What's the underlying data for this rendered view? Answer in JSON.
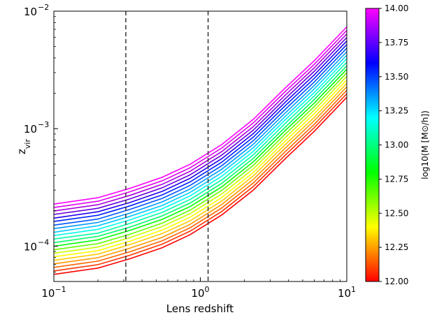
{
  "chart_data": {
    "type": "line",
    "title": "",
    "xlabel": "Lens redshift",
    "ylabel": "z_vir",
    "xscale": "log",
    "yscale": "log",
    "xlim": [
      0.1,
      10
    ],
    "ylim": [
      5e-05,
      0.01
    ],
    "grid": false,
    "x": [
      0.1,
      0.2,
      0.33,
      0.55,
      0.85,
      1.4,
      2.3,
      3.8,
      6.0,
      10.0
    ],
    "x_ticks": [
      {
        "value": 0.1,
        "base": "10",
        "exp": "−1"
      },
      {
        "value": 1,
        "base": "10",
        "exp": "0"
      },
      {
        "value": 10,
        "base": "10",
        "exp": "1"
      }
    ],
    "y_ticks": [
      {
        "value": 0.0001,
        "base": "10",
        "exp": "−4"
      },
      {
        "value": 0.001,
        "base": "10",
        "exp": "−3"
      },
      {
        "value": 0.01,
        "base": "10",
        "exp": "−2"
      }
    ],
    "vlines": [
      {
        "x": 0.31,
        "style": "dashed",
        "color": "#333333"
      },
      {
        "x": 1.13,
        "style": "dashed",
        "color": "#333333"
      }
    ],
    "series": [
      {
        "mass": 12.0,
        "color": "#ff0000",
        "values": [
          5.75e-05,
          6.5e-05,
          7.8e-05,
          9.7e-05,
          0.000125,
          0.000184,
          0.0003,
          0.000555,
          0.00095,
          0.00185
        ]
      },
      {
        "mass": 12.1,
        "color": "#ff3300",
        "values": [
          6.15e-05,
          6.95e-05,
          8.35e-05,
          0.000104,
          0.000134,
          0.000197,
          0.000322,
          0.000595,
          0.00102,
          0.00198
        ]
      },
      {
        "mass": 12.2,
        "color": "#ff6600",
        "values": [
          6.59e-05,
          7.45e-05,
          8.95e-05,
          0.000111,
          0.000143,
          0.000211,
          0.000345,
          0.000637,
          0.00109,
          0.00212
        ]
      },
      {
        "mass": 12.3,
        "color": "#ff9900",
        "values": [
          7.06e-05,
          7.98e-05,
          9.59e-05,
          0.000119,
          0.000153,
          0.000226,
          0.00037,
          0.000683,
          0.00117,
          0.00227
        ]
      },
      {
        "mass": 12.4,
        "color": "#ffcc00",
        "values": [
          7.57e-05,
          8.55e-05,
          0.000103,
          0.000128,
          0.000164,
          0.000242,
          0.000396,
          0.000732,
          0.00125,
          0.00243
        ]
      },
      {
        "mass": 12.5,
        "color": "#ffff00",
        "values": [
          8.11e-05,
          9.16e-05,
          0.00011,
          0.000137,
          0.000176,
          0.000259,
          0.000424,
          0.000784,
          0.00134,
          0.0026
        ]
      },
      {
        "mass": 12.6,
        "color": "#ccff00",
        "values": [
          8.69e-05,
          9.82e-05,
          0.000118,
          0.000147,
          0.000189,
          0.000278,
          0.000455,
          0.00084,
          0.00144,
          0.00279
        ]
      },
      {
        "mass": 12.7,
        "color": "#66ff00",
        "values": [
          9.31e-05,
          0.000105,
          0.000126,
          0.000157,
          0.000202,
          0.000298,
          0.000487,
          0.0009,
          0.00154,
          0.00299
        ]
      },
      {
        "mass": 12.8,
        "color": "#00ff00",
        "values": [
          9.98e-05,
          0.000113,
          0.000136,
          0.000169,
          0.000217,
          0.000319,
          0.000522,
          0.000965,
          0.00165,
          0.0032
        ]
      },
      {
        "mass": 12.9,
        "color": "#00ff66",
        "values": [
          0.000107,
          0.000121,
          0.000145,
          0.000181,
          0.000232,
          0.000342,
          0.000559,
          0.00103,
          0.00177,
          0.00343
        ]
      },
      {
        "mass": 13.0,
        "color": "#00ffaa",
        "values": [
          0.000115,
          0.000129,
          0.000156,
          0.000194,
          0.000249,
          0.000366,
          0.000599,
          0.00111,
          0.0019,
          0.00368
        ]
      },
      {
        "mass": 13.1,
        "color": "#00ffee",
        "values": [
          0.000123,
          0.000139,
          0.000167,
          0.000208,
          0.000267,
          0.000393,
          0.000642,
          0.00119,
          0.00203,
          0.00394
        ]
      },
      {
        "mass": 13.2,
        "color": "#00ccff",
        "values": [
          0.000131,
          0.000149,
          0.000179,
          0.000222,
          0.000286,
          0.000421,
          0.000688,
          0.00127,
          0.00218,
          0.00422
        ]
      },
      {
        "mass": 13.3,
        "color": "#0099ff",
        "values": [
          0.000141,
          0.000159,
          0.000191,
          0.000238,
          0.000306,
          0.000451,
          0.000737,
          0.00136,
          0.00233,
          0.00452
        ]
      },
      {
        "mass": 13.4,
        "color": "#0055ff",
        "values": [
          0.000151,
          0.00017,
          0.000205,
          0.000255,
          0.000328,
          0.000483,
          0.00079,
          0.00146,
          0.0025,
          0.00485
        ]
      },
      {
        "mass": 13.5,
        "color": "#0022ff",
        "values": [
          0.000162,
          0.000183,
          0.00022,
          0.000273,
          0.000352,
          0.000518,
          0.000847,
          0.00157,
          0.00268,
          0.0052
        ]
      },
      {
        "mass": 13.6,
        "color": "#2200ee",
        "values": [
          0.000173,
          0.000196,
          0.000235,
          0.000293,
          0.000377,
          0.000555,
          0.000907,
          0.00168,
          0.00287,
          0.00557
        ]
      },
      {
        "mass": 13.7,
        "color": "#6600dd",
        "values": [
          0.000186,
          0.00021,
          0.000252,
          0.000314,
          0.000404,
          0.000595,
          0.000972,
          0.0018,
          0.00308,
          0.00597
        ]
      },
      {
        "mass": 13.8,
        "color": "#aa00dd",
        "values": [
          0.000199,
          0.000225,
          0.00027,
          0.000336,
          0.000433,
          0.000637,
          0.00104,
          0.00193,
          0.0033,
          0.0064
        ]
      },
      {
        "mass": 13.9,
        "color": "#dd00ee",
        "values": [
          0.000213,
          0.000241,
          0.00029,
          0.00036,
          0.000464,
          0.000683,
          0.00112,
          0.00207,
          0.00353,
          0.00686
        ]
      },
      {
        "mass": 14.0,
        "color": "#ff00ff",
        "values": [
          0.000228,
          0.000258,
          0.00031,
          0.000386,
          0.000497,
          0.000732,
          0.0012,
          0.00222,
          0.00379,
          0.00735
        ]
      }
    ],
    "colorbar": {
      "label": "log10(M [M⊙/h])",
      "min": 12.0,
      "max": 14.0,
      "ticks": [
        "12.00",
        "12.25",
        "12.50",
        "12.75",
        "13.00",
        "13.25",
        "13.50",
        "13.75",
        "14.00"
      ],
      "colors": [
        "#ff0000",
        "#ffff00",
        "#00ff00",
        "#00ffff",
        "#0000ff",
        "#ff00ff"
      ]
    }
  }
}
